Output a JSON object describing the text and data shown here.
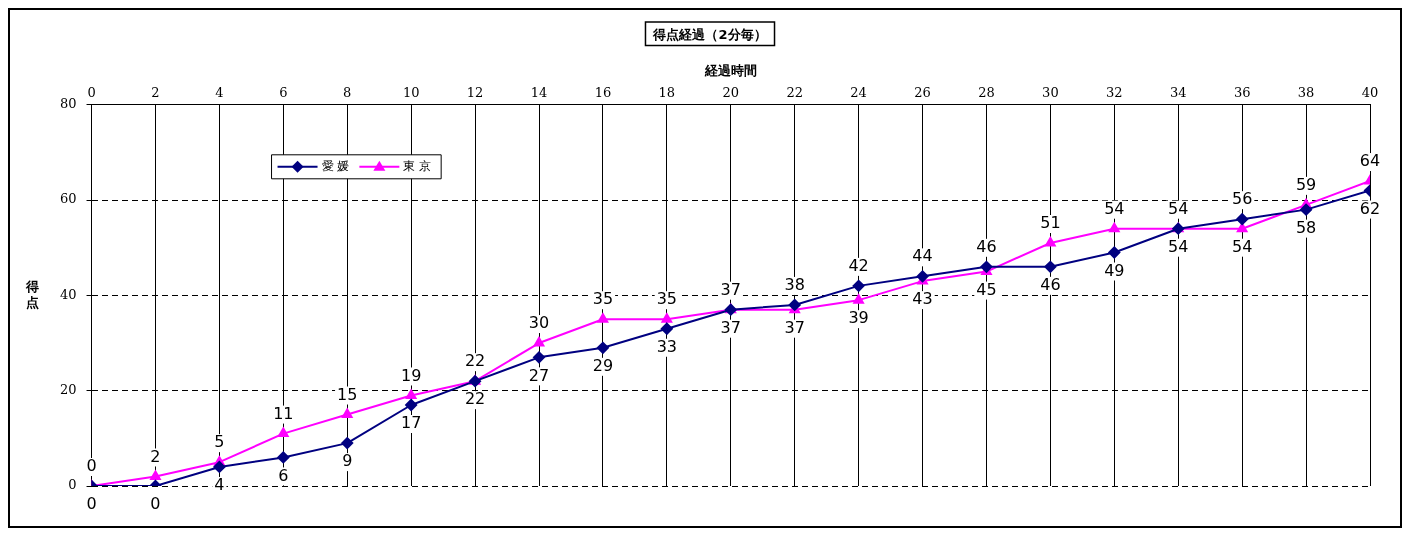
{
  "chart_data": {
    "type": "line",
    "title": "得点経過（2分毎）",
    "xlabel": "経過時間",
    "ylabel": "得点",
    "x": [
      0,
      2,
      4,
      6,
      8,
      10,
      12,
      14,
      16,
      18,
      20,
      22,
      24,
      26,
      28,
      30,
      32,
      34,
      36,
      38,
      40
    ],
    "xlim": [
      0,
      40
    ],
    "xticks": [
      0,
      2,
      4,
      6,
      8,
      10,
      12,
      14,
      16,
      18,
      20,
      22,
      24,
      26,
      28,
      30,
      32,
      34,
      36,
      38,
      40
    ],
    "ylim": [
      0,
      80
    ],
    "yticks": [
      0,
      20,
      40,
      60,
      80
    ],
    "grid": true,
    "legend": "top left",
    "data_labels": true,
    "series": [
      {
        "name": "愛 媛",
        "color": "#000080",
        "marker": "diamond",
        "values": [
          0,
          0,
          4,
          6,
          9,
          17,
          22,
          27,
          29,
          33,
          37,
          38,
          42,
          44,
          46,
          46,
          49,
          54,
          56,
          58,
          62
        ]
      },
      {
        "name": "東 京",
        "color": "#ff00ff",
        "marker": "triangle",
        "values": [
          0,
          2,
          5,
          11,
          15,
          19,
          22,
          30,
          35,
          35,
          37,
          37,
          39,
          43,
          45,
          51,
          54,
          54,
          54,
          59,
          64
        ]
      }
    ]
  }
}
